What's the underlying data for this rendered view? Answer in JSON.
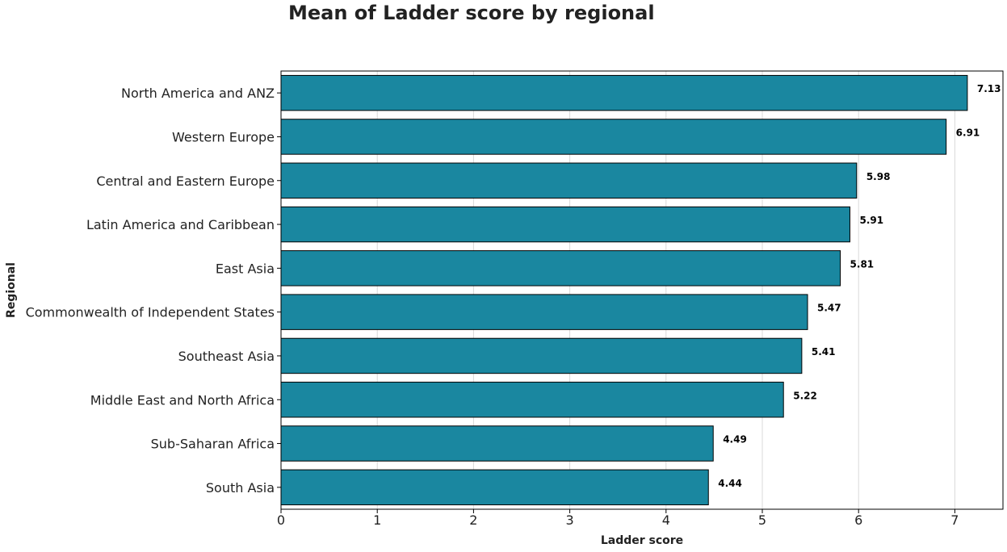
{
  "chart_data": {
    "type": "bar",
    "orientation": "horizontal",
    "title": "Mean of Ladder score by regional",
    "xlabel": "Ladder score",
    "ylabel": "Regional",
    "xlim": [
      0,
      7.5
    ],
    "xticks": [
      0,
      1,
      2,
      3,
      4,
      5,
      6,
      7
    ],
    "grid": "vertical",
    "categories": [
      "North America and ANZ",
      "Western Europe",
      "Central and Eastern Europe",
      "Latin America and Caribbean",
      "East Asia",
      "Commonwealth of Independent States",
      "Southeast Asia",
      "Middle East and North Africa",
      "Sub-Saharan Africa",
      "South Asia"
    ],
    "values": [
      7.13,
      6.91,
      5.98,
      5.91,
      5.81,
      5.47,
      5.41,
      5.22,
      4.49,
      4.44
    ],
    "data_labels": [
      "7.13",
      "6.91",
      "5.98",
      "5.91",
      "5.81",
      "5.47",
      "5.41",
      "5.22",
      "4.49",
      "4.44"
    ],
    "bar_color": "#1a87a0",
    "bar_edge_color": "#000000"
  }
}
